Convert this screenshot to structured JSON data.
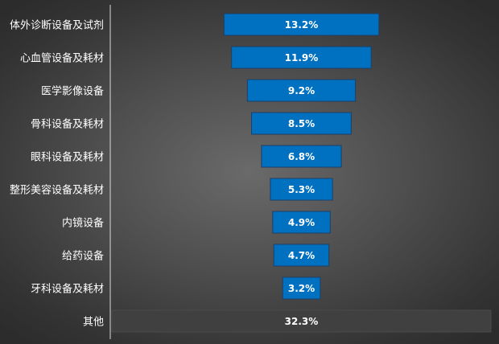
{
  "chart_data": {
    "type": "bar",
    "orientation": "horizontal",
    "layout": "funnel",
    "title": "",
    "xlabel": "",
    "ylabel": "",
    "categories": [
      "体外诊断设备及试剂",
      "心血管设备及耗材",
      "医学影像设备",
      "骨科设备及耗材",
      "眼科设备及耗材",
      "整形美容设备及耗材",
      "内镜设备",
      "给药设备",
      "牙科设备及耗材",
      "其他"
    ],
    "values": [
      13.2,
      11.9,
      9.2,
      8.5,
      6.8,
      5.3,
      4.9,
      4.7,
      3.2,
      32.3
    ],
    "value_labels": [
      "13.2%",
      "11.9%",
      "9.2%",
      "8.5%",
      "6.8%",
      "5.3%",
      "4.9%",
      "4.7%",
      "3.2%",
      "32.3%"
    ],
    "unit": "%",
    "bar_colors": [
      "#0070c0",
      "#0070c0",
      "#0070c0",
      "#0070c0",
      "#0070c0",
      "#0070c0",
      "#0070c0",
      "#0070c0",
      "#0070c0",
      "#404040"
    ],
    "axis_line_color": "#d9d9d9",
    "grid": false,
    "legend": "none"
  }
}
